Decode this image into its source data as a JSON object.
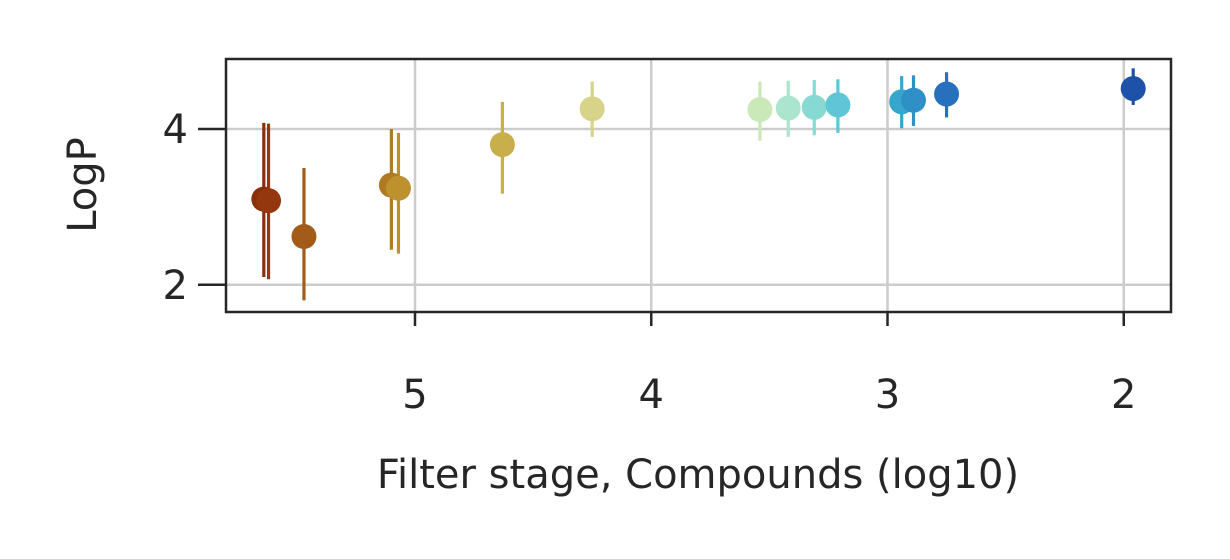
{
  "chart_data": {
    "type": "scatter",
    "title": "",
    "xlabel": "Filter stage, Compounds (log10)",
    "ylabel": "LogP",
    "xlim": [
      5.8,
      1.8
    ],
    "ylim": [
      1.65,
      4.9
    ],
    "xticks": [
      5,
      4,
      3,
      2
    ],
    "xtick_labels": [
      "5",
      "4",
      "3",
      "2"
    ],
    "yticks": [
      2,
      4
    ],
    "ytick_labels": [
      "2",
      "4"
    ],
    "grid": true,
    "legend": "none",
    "points": [
      {
        "x": 5.64,
        "y": 3.1,
        "lo": 2.1,
        "hi": 4.08,
        "color": "#8a2f0c"
      },
      {
        "x": 5.62,
        "y": 3.08,
        "lo": 2.07,
        "hi": 4.07,
        "color": "#94360e"
      },
      {
        "x": 5.47,
        "y": 2.62,
        "lo": 1.8,
        "hi": 3.5,
        "color": "#a25b18"
      },
      {
        "x": 5.1,
        "y": 3.28,
        "lo": 2.45,
        "hi": 4.0,
        "color": "#b07a22"
      },
      {
        "x": 5.07,
        "y": 3.24,
        "lo": 2.4,
        "hi": 3.95,
        "color": "#bd922e"
      },
      {
        "x": 4.63,
        "y": 3.8,
        "lo": 3.17,
        "hi": 4.35,
        "color": "#c9ae4c"
      },
      {
        "x": 4.25,
        "y": 4.26,
        "lo": 3.9,
        "hi": 4.61,
        "color": "#d7d389"
      },
      {
        "x": 3.54,
        "y": 4.25,
        "lo": 3.85,
        "hi": 4.61,
        "color": "#c9e9b8"
      },
      {
        "x": 3.42,
        "y": 4.27,
        "lo": 3.9,
        "hi": 4.62,
        "color": "#ace5cd"
      },
      {
        "x": 3.31,
        "y": 4.28,
        "lo": 3.92,
        "hi": 4.63,
        "color": "#87d9d4"
      },
      {
        "x": 3.21,
        "y": 4.31,
        "lo": 3.95,
        "hi": 4.64,
        "color": "#5ec6d4"
      },
      {
        "x": 2.94,
        "y": 4.35,
        "lo": 4.01,
        "hi": 4.68,
        "color": "#37a6cd"
      },
      {
        "x": 2.89,
        "y": 4.37,
        "lo": 4.04,
        "hi": 4.69,
        "color": "#2f8fc7"
      },
      {
        "x": 2.75,
        "y": 4.45,
        "lo": 4.15,
        "hi": 4.73,
        "color": "#2670be"
      },
      {
        "x": 1.96,
        "y": 4.52,
        "lo": 4.31,
        "hi": 4.78,
        "color": "#1e51a8"
      }
    ]
  }
}
